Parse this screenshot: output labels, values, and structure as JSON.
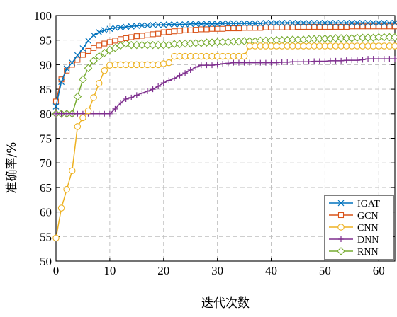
{
  "chart_data": {
    "type": "line",
    "title": "",
    "xlabel": "迭代次数",
    "ylabel": "准确率/%",
    "xlim": [
      0,
      63
    ],
    "ylim": [
      50,
      100
    ],
    "xticks": [
      0,
      10,
      20,
      30,
      40,
      50,
      60
    ],
    "yticks": [
      50,
      55,
      60,
      65,
      70,
      75,
      80,
      85,
      90,
      95,
      100
    ],
    "grid": true,
    "legend_position": "bottom-right",
    "series": [
      {
        "name": "IGAT",
        "color": "#0072bd",
        "marker": "x",
        "values": [
          81.5,
          86.5,
          89.2,
          90.4,
          91.9,
          93.3,
          94.9,
          96.0,
          96.6,
          97.0,
          97.3,
          97.5,
          97.6,
          97.7,
          97.8,
          97.9,
          98.0,
          98.0,
          98.1,
          98.1,
          98.1,
          98.2,
          98.2,
          98.2,
          98.2,
          98.3,
          98.3,
          98.3,
          98.3,
          98.3,
          98.3,
          98.4,
          98.4,
          98.4,
          98.4,
          98.4,
          98.4,
          98.4,
          98.4,
          98.5,
          98.5,
          98.5,
          98.5,
          98.5,
          98.5,
          98.5,
          98.5,
          98.5,
          98.5,
          98.5,
          98.5,
          98.5,
          98.5,
          98.5,
          98.5,
          98.5,
          98.5,
          98.5,
          98.5,
          98.5,
          98.5,
          98.5,
          98.5,
          98.5
        ]
      },
      {
        "name": "GCN",
        "color": "#d95319",
        "marker": "square",
        "values": [
          82.5,
          87.0,
          88.8,
          90.0,
          91.0,
          92.0,
          92.8,
          93.4,
          93.9,
          94.3,
          94.6,
          94.9,
          95.2,
          95.4,
          95.6,
          95.8,
          95.9,
          96.0,
          96.2,
          96.3,
          96.6,
          96.7,
          96.8,
          96.9,
          97.0,
          97.0,
          97.1,
          97.2,
          97.2,
          97.3,
          97.3,
          97.3,
          97.4,
          97.4,
          97.4,
          97.5,
          97.5,
          97.5,
          97.5,
          97.6,
          97.6,
          97.6,
          97.6,
          97.6,
          97.6,
          97.7,
          97.7,
          97.7,
          97.7,
          97.7,
          97.7,
          97.7,
          97.7,
          97.7,
          97.7,
          97.8,
          97.8,
          97.8,
          97.8,
          97.8,
          97.8,
          97.8,
          97.8,
          97.8
        ]
      },
      {
        "name": "CNN",
        "color": "#edb120",
        "marker": "circle",
        "values": [
          54.7,
          60.8,
          64.6,
          68.4,
          77.4,
          79.2,
          80.6,
          83.3,
          86.2,
          88.8,
          89.9,
          90.0,
          90.0,
          90.0,
          90.0,
          90.0,
          90.0,
          90.0,
          90.0,
          90.0,
          90.2,
          90.4,
          91.7,
          91.7,
          91.7,
          91.7,
          91.7,
          91.7,
          91.7,
          91.7,
          91.7,
          91.7,
          91.7,
          91.7,
          91.7,
          91.7,
          93.8,
          93.8,
          93.8,
          93.8,
          93.8,
          93.8,
          93.8,
          93.8,
          93.8,
          93.8,
          93.8,
          93.8,
          93.8,
          93.8,
          93.8,
          93.8,
          93.8,
          93.8,
          93.8,
          93.8,
          93.8,
          93.8,
          93.8,
          93.8,
          93.8,
          93.8,
          93.8,
          93.8
        ]
      },
      {
        "name": "DNN",
        "color": "#7e2f8e",
        "marker": "plus",
        "values": [
          80.0,
          80.0,
          80.0,
          80.0,
          80.0,
          80.0,
          80.0,
          80.0,
          80.0,
          80.0,
          80.0,
          81.0,
          82.2,
          83.0,
          83.3,
          83.8,
          84.2,
          84.6,
          85.0,
          85.6,
          86.3,
          86.8,
          87.2,
          87.8,
          88.3,
          88.9,
          89.5,
          89.9,
          89.9,
          89.9,
          90.0,
          90.2,
          90.3,
          90.4,
          90.4,
          90.4,
          90.4,
          90.4,
          90.4,
          90.4,
          90.4,
          90.4,
          90.5,
          90.5,
          90.6,
          90.6,
          90.6,
          90.6,
          90.7,
          90.7,
          90.7,
          90.8,
          90.8,
          90.8,
          90.9,
          90.9,
          90.9,
          91.0,
          91.2,
          91.2,
          91.2,
          91.2,
          91.2,
          91.2
        ]
      },
      {
        "name": "RNN",
        "color": "#77ac30",
        "marker": "diamond",
        "values": [
          80.0,
          80.0,
          80.0,
          80.0,
          83.5,
          87.0,
          89.3,
          90.8,
          91.7,
          92.4,
          93.0,
          93.4,
          93.9,
          94.3,
          94.0,
          94.0,
          94.0,
          94.0,
          94.0,
          94.0,
          94.0,
          94.0,
          94.2,
          94.2,
          94.3,
          94.3,
          94.4,
          94.4,
          94.5,
          94.5,
          94.6,
          94.6,
          94.6,
          94.7,
          94.7,
          94.8,
          94.8,
          94.8,
          94.9,
          94.9,
          94.9,
          95.0,
          95.0,
          95.0,
          95.1,
          95.1,
          95.1,
          95.2,
          95.2,
          95.3,
          95.3,
          95.3,
          95.4,
          95.4,
          95.4,
          95.4,
          95.5,
          95.5,
          95.5,
          95.5,
          95.6,
          95.6,
          95.6,
          95.6
        ]
      }
    ]
  }
}
